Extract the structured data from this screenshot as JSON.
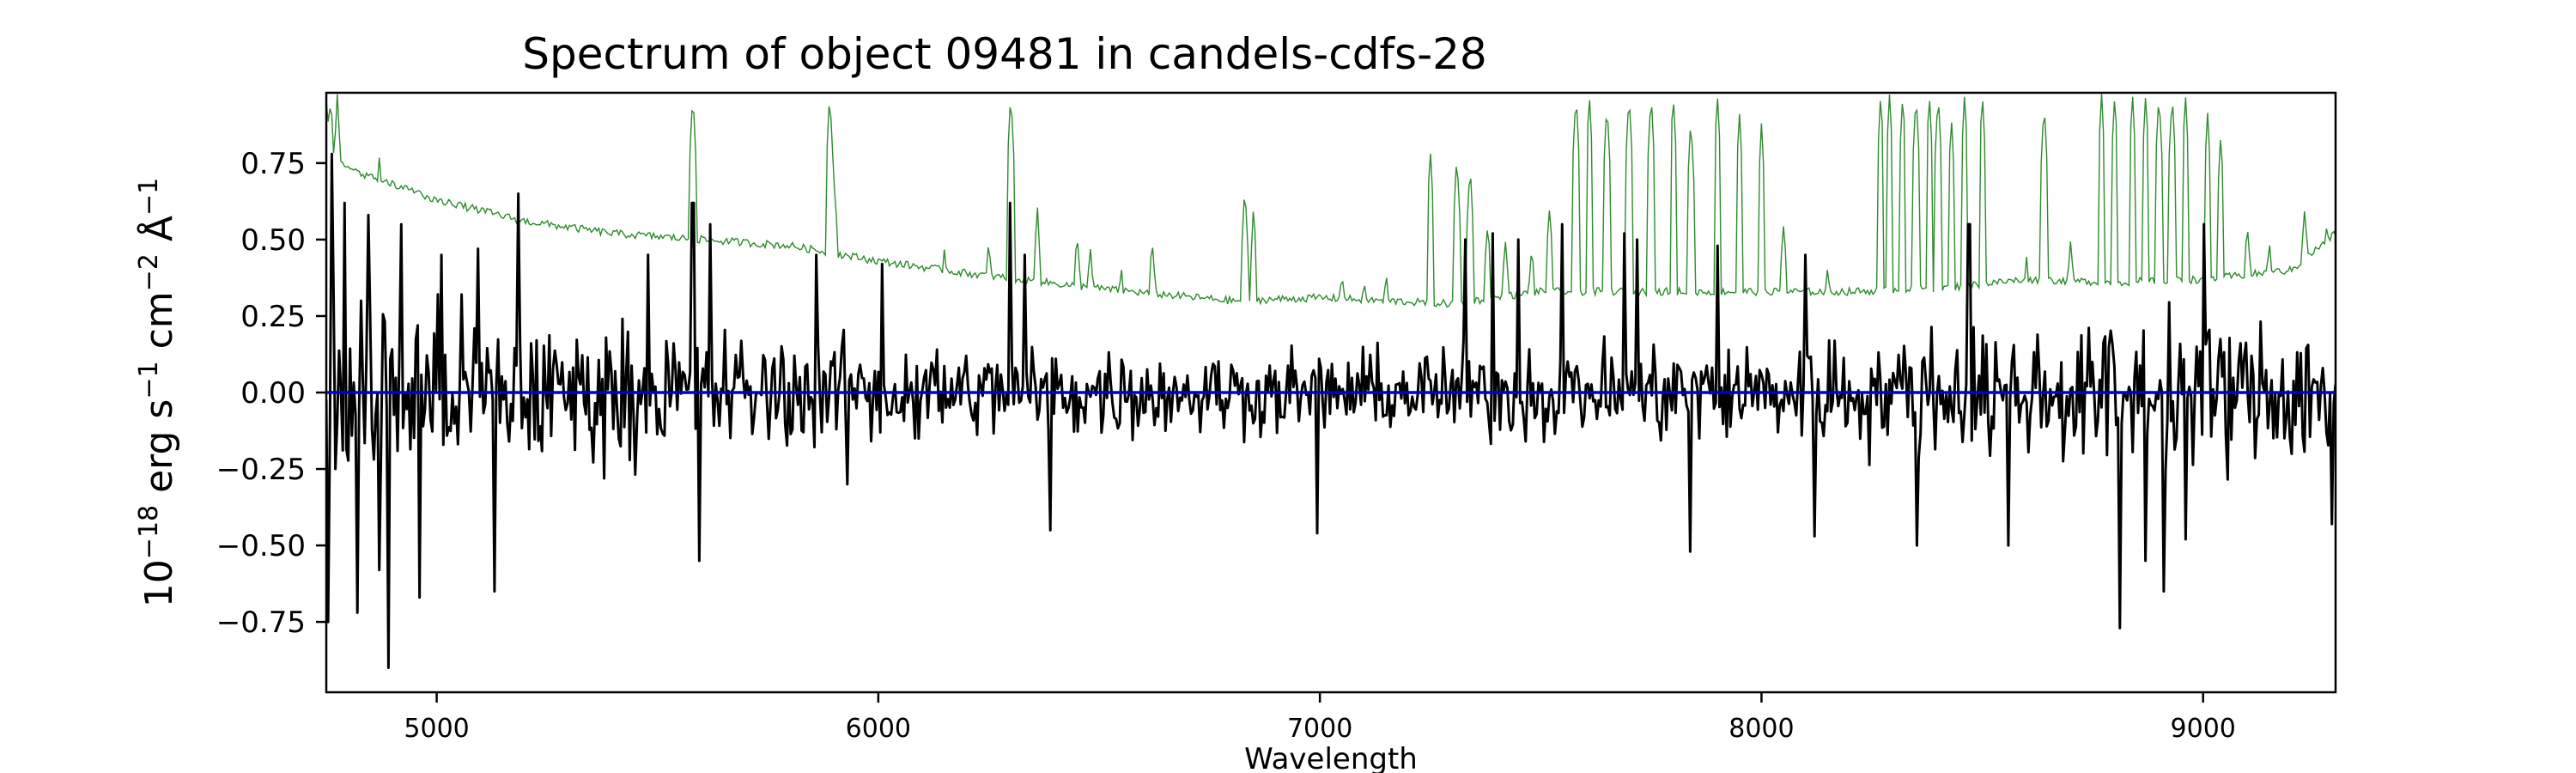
{
  "chart_data": {
    "type": "line",
    "title": "Spectrum of object 09481 in candels-cdfs-28",
    "xlabel": "Wavelength",
    "ylabel": {
      "base": "10",
      "exp": "−18",
      "unit1": " erg s",
      "unit1_exp": "−1",
      "unit2": " cm",
      "unit2_exp": "−2",
      "unit3": " Å",
      "unit3_exp": "−1"
    },
    "xlim": [
      4750,
      9300
    ],
    "ylim": [
      -0.98,
      0.98
    ],
    "grid": false,
    "x_ticks": [
      5000,
      6000,
      7000,
      8000,
      9000
    ],
    "x_tick_labels": [
      "5000",
      "6000",
      "7000",
      "8000",
      "9000"
    ],
    "y_ticks": [
      0.75,
      0.5,
      0.25,
      0.0,
      -0.25,
      -0.5,
      -0.75
    ],
    "y_tick_labels": [
      "0.75",
      "0.50",
      "0.25",
      "0.00",
      "−0.25",
      "−0.50",
      "−0.75"
    ],
    "colors": {
      "flux": "#000000",
      "error": "#2e8b2e",
      "zero": "#0000cc"
    },
    "series": [
      {
        "key": "flux",
        "x_start": 4750,
        "x_end": 9300,
        "n_points": 1100,
        "noise_anchors": [
          [
            4750,
            0.42
          ],
          [
            5000,
            0.33
          ],
          [
            5500,
            0.24
          ],
          [
            6000,
            0.2
          ],
          [
            6500,
            0.17
          ],
          [
            7000,
            0.15
          ],
          [
            7500,
            0.18
          ],
          [
            8000,
            0.2
          ],
          [
            8500,
            0.24
          ],
          [
            9000,
            0.28
          ],
          [
            9300,
            0.28
          ]
        ],
        "extremes": [
          [
            4755,
            -0.75
          ],
          [
            4762,
            0.78
          ],
          [
            4790,
            0.62
          ],
          [
            4820,
            -0.72
          ],
          [
            4845,
            0.58
          ],
          [
            4870,
            -0.58
          ],
          [
            4890,
            -0.9
          ],
          [
            4920,
            0.55
          ],
          [
            4960,
            -0.67
          ],
          [
            5010,
            0.45
          ],
          [
            5095,
            0.47
          ],
          [
            5130,
            -0.65
          ],
          [
            5185,
            0.65
          ],
          [
            5480,
            0.45
          ],
          [
            5580,
            0.62
          ],
          [
            5595,
            -0.55
          ],
          [
            5620,
            0.55
          ],
          [
            5860,
            0.45
          ],
          [
            5930,
            -0.3
          ],
          [
            6010,
            0.42
          ],
          [
            6300,
            0.62
          ],
          [
            6330,
            0.45
          ],
          [
            6390,
            -0.45
          ],
          [
            6995,
            -0.46
          ],
          [
            7330,
            0.5
          ],
          [
            7390,
            0.52
          ],
          [
            7450,
            0.5
          ],
          [
            7550,
            0.55
          ],
          [
            7690,
            0.52
          ],
          [
            7720,
            0.5
          ],
          [
            7840,
            -0.52
          ],
          [
            7900,
            0.48
          ],
          [
            8100,
            0.45
          ],
          [
            8120,
            -0.47
          ],
          [
            8350,
            -0.5
          ],
          [
            8470,
            0.55
          ],
          [
            8560,
            -0.5
          ],
          [
            8810,
            -0.77
          ],
          [
            8870,
            -0.55
          ],
          [
            8910,
            -0.65
          ],
          [
            8960,
            -0.48
          ],
          [
            9000,
            0.55
          ],
          [
            9290,
            -0.43
          ]
        ]
      },
      {
        "key": "error",
        "x_start": 4750,
        "x_end": 9300,
        "n_points": 1100,
        "baseline": [
          [
            4750,
            0.95
          ],
          [
            4760,
            0.78
          ],
          [
            4800,
            0.73
          ],
          [
            4900,
            0.68
          ],
          [
            5000,
            0.63
          ],
          [
            5200,
            0.56
          ],
          [
            5400,
            0.52
          ],
          [
            5600,
            0.5
          ],
          [
            5800,
            0.48
          ],
          [
            6000,
            0.43
          ],
          [
            6200,
            0.39
          ],
          [
            6500,
            0.34
          ],
          [
            6800,
            0.3
          ],
          [
            7000,
            0.31
          ],
          [
            7300,
            0.29
          ],
          [
            7500,
            0.33
          ],
          [
            7700,
            0.33
          ],
          [
            8000,
            0.33
          ],
          [
            8200,
            0.33
          ],
          [
            8400,
            0.34
          ],
          [
            8600,
            0.37
          ],
          [
            8800,
            0.36
          ],
          [
            9000,
            0.37
          ],
          [
            9200,
            0.4
          ],
          [
            9300,
            0.52
          ]
        ],
        "peaks": [
          [
            4760,
            0.98
          ],
          [
            4775,
            0.98
          ],
          [
            4870,
            0.77
          ],
          [
            5580,
            0.98
          ],
          [
            5890,
            0.98
          ],
          [
            6300,
            0.98
          ],
          [
            6360,
            0.62
          ],
          [
            6830,
            0.68
          ],
          [
            6850,
            0.62
          ],
          [
            7250,
            0.8
          ],
          [
            7310,
            0.78
          ],
          [
            7340,
            0.75
          ],
          [
            7580,
            0.98
          ],
          [
            7610,
            0.98
          ],
          [
            7650,
            0.95
          ],
          [
            7700,
            0.98
          ],
          [
            7750,
            0.98
          ],
          [
            7800,
            0.98
          ],
          [
            7840,
            0.9
          ],
          [
            7900,
            0.98
          ],
          [
            7950,
            0.92
          ],
          [
            8000,
            0.88
          ],
          [
            8270,
            0.98
          ],
          [
            8290,
            0.98
          ],
          [
            8320,
            0.98
          ],
          [
            8350,
            0.98
          ],
          [
            8380,
            0.98
          ],
          [
            8400,
            0.98
          ],
          [
            8430,
            0.9
          ],
          [
            8460,
            0.98
          ],
          [
            8500,
            0.98
          ],
          [
            8640,
            0.95
          ],
          [
            8770,
            0.98
          ],
          [
            8800,
            0.98
          ],
          [
            8840,
            0.98
          ],
          [
            8870,
            0.98
          ],
          [
            8900,
            0.98
          ],
          [
            8930,
            0.98
          ],
          [
            8960,
            0.98
          ],
          [
            9010,
            0.92
          ],
          [
            9040,
            0.85
          ]
        ],
        "ripples": [
          [
            5900,
            0.68
          ],
          [
            6150,
            0.48
          ],
          [
            6250,
            0.5
          ],
          [
            6450,
            0.52
          ],
          [
            6480,
            0.48
          ],
          [
            6550,
            0.42
          ],
          [
            6620,
            0.5
          ],
          [
            7050,
            0.4
          ],
          [
            7100,
            0.38
          ],
          [
            7150,
            0.4
          ],
          [
            7380,
            0.55
          ],
          [
            7420,
            0.5
          ],
          [
            7480,
            0.48
          ],
          [
            7520,
            0.6
          ],
          [
            8050,
            0.55
          ],
          [
            8150,
            0.42
          ],
          [
            8600,
            0.45
          ],
          [
            8700,
            0.5
          ],
          [
            9100,
            0.55
          ],
          [
            9150,
            0.5
          ],
          [
            9230,
            0.6
          ],
          [
            9280,
            0.55
          ]
        ]
      },
      {
        "key": "zero",
        "x": [
          4750,
          9300
        ],
        "y": [
          0,
          0
        ]
      }
    ]
  }
}
